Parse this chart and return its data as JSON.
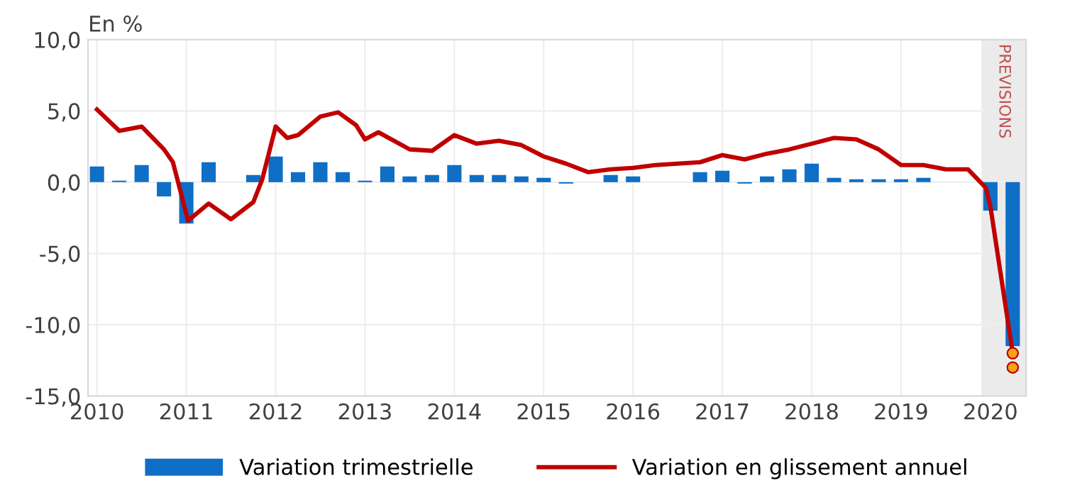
{
  "chart_data": {
    "type": "bar",
    "ylabel": "En %",
    "x": [
      2010,
      2010.25,
      2010.5,
      2010.75,
      2011,
      2011.25,
      2011.5,
      2011.75,
      2012,
      2012.25,
      2012.5,
      2012.75,
      2013,
      2013.25,
      2013.5,
      2013.75,
      2014,
      2014.25,
      2014.5,
      2014.75,
      2015,
      2015.25,
      2015.5,
      2015.75,
      2016,
      2016.25,
      2016.5,
      2016.75,
      2017,
      2017.25,
      2017.5,
      2017.75,
      2018,
      2018.25,
      2018.5,
      2018.75,
      2019,
      2019.25,
      2019.5,
      2019.75,
      2020,
      2020.25
    ],
    "series": [
      {
        "name": "Variation trimestrielle",
        "color": "#0f6fc6",
        "values": [
          1.1,
          0.1,
          1.2,
          -1.0,
          -2.9,
          1.4,
          0.0,
          0.5,
          1.8,
          0.7,
          1.4,
          0.7,
          0.1,
          1.1,
          0.4,
          0.5,
          1.2,
          0.5,
          0.5,
          0.4,
          0.3,
          -0.1,
          0.0,
          0.5,
          0.4,
          0.0,
          0.0,
          0.7,
          0.8,
          -0.1,
          0.4,
          0.9,
          1.3,
          0.3,
          0.2,
          0.2,
          0.2,
          0.3,
          0.0,
          0.0,
          -2.0,
          -11.5
        ]
      },
      {
        "name": "Variation en glissement annuel",
        "type": "line",
        "color": "#c00000",
        "x": [
          2010,
          2010.25,
          2010.5,
          2010.75,
          2010.85,
          2011.02,
          2011.25,
          2011.5,
          2011.75,
          2011.85,
          2012,
          2012.13,
          2012.25,
          2012.5,
          2012.7,
          2012.9,
          2013,
          2013.15,
          2013.5,
          2013.75,
          2014,
          2014.25,
          2014.5,
          2014.75,
          2015,
          2015.25,
          2015.5,
          2015.75,
          2016,
          2016.25,
          2016.5,
          2016.75,
          2017,
          2017.25,
          2017.5,
          2017.75,
          2018,
          2018.25,
          2018.5,
          2018.75,
          2019,
          2019.25,
          2019.5,
          2019.75,
          2019.95,
          2020,
          2020.25
        ],
        "values": [
          5.1,
          3.6,
          3.9,
          2.3,
          1.4,
          -2.7,
          -1.5,
          -2.6,
          -1.4,
          0.2,
          3.9,
          3.1,
          3.3,
          4.6,
          4.9,
          4.0,
          3.0,
          3.5,
          2.3,
          2.2,
          3.3,
          2.7,
          2.9,
          2.6,
          1.8,
          1.3,
          0.7,
          0.9,
          1.0,
          1.2,
          1.3,
          1.4,
          1.9,
          1.6,
          2.0,
          2.3,
          2.7,
          3.1,
          3.0,
          2.3,
          1.2,
          1.2,
          0.9,
          0.9,
          -0.4,
          -1.7,
          -12.0
        ]
      },
      {
        "type": "scatter",
        "color": "#f5a31a",
        "marker": "circle",
        "x": [
          2020.25,
          2020.25
        ],
        "values": [
          -12.0,
          -13.0
        ]
      }
    ],
    "xlim": [
      2009.9,
      2020.4
    ],
    "xticks": [
      2010,
      2011,
      2012,
      2013,
      2014,
      2015,
      2016,
      2017,
      2018,
      2019,
      2020
    ],
    "ylim": [
      -15,
      10
    ],
    "yticks": [
      {
        "value": -15,
        "label": "-15,0"
      },
      {
        "value": -10,
        "label": "-10,0"
      },
      {
        "value": -5,
        "label": "-5,0"
      },
      {
        "value": 0,
        "label": "0,0"
      },
      {
        "value": 5,
        "label": "5,0"
      },
      {
        "value": 10,
        "label": "10,0"
      }
    ],
    "bands": [
      {
        "axis": "x",
        "from": 2019.9,
        "to": 2020.4,
        "label": "PREVISIONS",
        "color": "#ebebeb"
      }
    ],
    "grid": true,
    "legend": "bottom"
  }
}
